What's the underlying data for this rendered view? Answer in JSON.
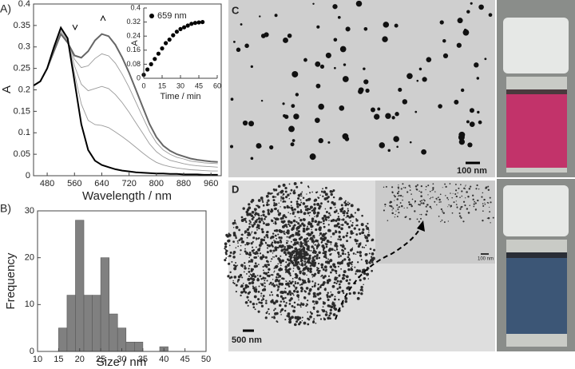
{
  "figure": {
    "panel_labels": [
      "A)",
      "B)",
      "C",
      "D"
    ],
    "scale_bars": {
      "c": "100 nm",
      "d": "500 nm",
      "d_inset": "100 nm"
    }
  },
  "chart_data": [
    {
      "type": "line",
      "xlabel": "Wavelength / nm",
      "ylabel": "A",
      "xlim": [
        440,
        990
      ],
      "ylim": [
        0,
        0.4
      ],
      "xticks": [
        480,
        560,
        640,
        720,
        800,
        880,
        960
      ],
      "yticks": [
        0,
        0.05,
        0.1,
        0.15,
        0.2,
        0.25,
        0.3,
        0.35,
        0.4
      ],
      "x": [
        440,
        460,
        480,
        500,
        520,
        540,
        560,
        580,
        600,
        620,
        640,
        660,
        680,
        700,
        720,
        740,
        760,
        780,
        800,
        820,
        840,
        860,
        880,
        900,
        920,
        940,
        960,
        980
      ],
      "series": [
        {
          "color": "#9a9a9a",
          "values": [
            0.21,
            0.22,
            0.25,
            0.297,
            0.341,
            0.317,
            0.238,
            0.167,
            0.129,
            0.119,
            0.117,
            0.112,
            0.102,
            0.091,
            0.079,
            0.066,
            0.053,
            0.041,
            0.031,
            0.025,
            0.021,
            0.018,
            0.016,
            0.014,
            0.013,
            0.012,
            0.011,
            0.011
          ]
        },
        {
          "color": "#9a9a9a",
          "values": [
            0.21,
            0.22,
            0.25,
            0.294,
            0.336,
            0.314,
            0.256,
            0.213,
            0.198,
            0.203,
            0.208,
            0.203,
            0.189,
            0.17,
            0.148,
            0.123,
            0.099,
            0.074,
            0.056,
            0.044,
            0.036,
            0.032,
            0.028,
            0.025,
            0.023,
            0.022,
            0.021,
            0.02
          ]
        },
        {
          "color": "#9a9a9a",
          "values": [
            0.21,
            0.22,
            0.25,
            0.292,
            0.332,
            0.312,
            0.271,
            0.252,
            0.256,
            0.273,
            0.284,
            0.279,
            0.262,
            0.236,
            0.206,
            0.171,
            0.137,
            0.103,
            0.077,
            0.06,
            0.05,
            0.043,
            0.039,
            0.034,
            0.032,
            0.03,
            0.029,
            0.028
          ]
        },
        {
          "color": "#666666",
          "values": [
            0.21,
            0.22,
            0.25,
            0.29,
            0.33,
            0.31,
            0.28,
            0.275,
            0.29,
            0.315,
            0.33,
            0.325,
            0.305,
            0.275,
            0.24,
            0.2,
            0.16,
            0.12,
            0.09,
            0.07,
            0.058,
            0.05,
            0.045,
            0.04,
            0.037,
            0.035,
            0.033,
            0.032
          ]
        },
        {
          "color": "#000000",
          "values": [
            0.21,
            0.22,
            0.25,
            0.3,
            0.345,
            0.32,
            0.22,
            0.12,
            0.06,
            0.035,
            0.025,
            0.02,
            0.015,
            0.012,
            0.01,
            0.008,
            0.007,
            0.006,
            0.005,
            0.005,
            0.004,
            0.004,
            0.003,
            0.003,
            0.003,
            0.002,
            0.002,
            0.002
          ]
        }
      ]
    },
    {
      "type": "scatter",
      "xlabel": "Time / min",
      "ylabel": "A",
      "legend": "upper left",
      "xlim": [
        0,
        60
      ],
      "ylim": [
        0,
        0.4
      ],
      "xticks": [
        0,
        15,
        30,
        45,
        60
      ],
      "yticks": [
        0,
        0.08,
        0.16,
        0.24,
        0.32,
        0.4
      ],
      "x": [
        0,
        3,
        6,
        9,
        12,
        15,
        18,
        21,
        24,
        27,
        30,
        33,
        36,
        39,
        42,
        45,
        48
      ],
      "series": [
        {
          "name": "659 nm",
          "color": "#000000",
          "values": [
            0.02,
            0.05,
            0.08,
            0.11,
            0.14,
            0.17,
            0.2,
            0.22,
            0.245,
            0.265,
            0.28,
            0.29,
            0.3,
            0.31,
            0.315,
            0.318,
            0.32
          ]
        }
      ]
    },
    {
      "type": "histogram",
      "xlabel": "Size / nm",
      "ylabel": "Frequency",
      "color": "#808080",
      "xlim": [
        10,
        50
      ],
      "ylim": [
        0,
        30
      ],
      "xticks": [
        10,
        15,
        20,
        25,
        30,
        35,
        40,
        45,
        50
      ],
      "yticks": [
        0,
        10,
        20,
        30
      ],
      "bins": [
        15,
        17,
        19,
        21,
        23,
        25,
        27,
        29,
        31,
        33,
        35,
        37,
        39,
        41
      ],
      "values": [
        5,
        12,
        28,
        12,
        12,
        20,
        8,
        5,
        2,
        2,
        0,
        0,
        1
      ]
    }
  ]
}
